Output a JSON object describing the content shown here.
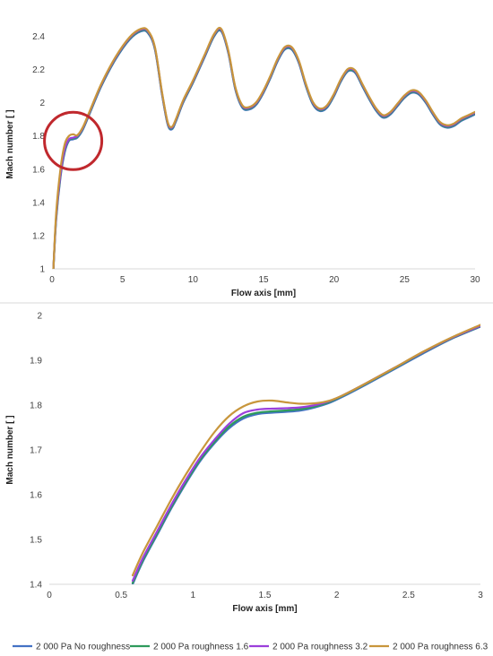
{
  "chart_data": [
    {
      "type": "line",
      "xlabel": "Flow axis [mm]",
      "ylabel": "Mach number [ ]",
      "xlim": [
        0,
        30
      ],
      "ylim": [
        1,
        2.5
      ],
      "x_ticks": [
        "0",
        "5",
        "10",
        "15",
        "20",
        "25",
        "30"
      ],
      "y_ticks": [
        "1",
        "1.2",
        "1.4",
        "1.6",
        "1.8",
        "2",
        "2.2",
        "2.4"
      ],
      "grid": false,
      "annotation": {
        "shape": "circle",
        "color": "#c0282d",
        "center_x": 1.5,
        "center_y": 1.77
      },
      "series": [
        {
          "name": "2 000 Pa No roughness",
          "color": "#4472c4",
          "x": [
            0.1,
            0.3,
            0.6,
            0.9,
            1.2,
            1.5,
            1.8,
            2.2,
            2.7,
            3.5,
            4.5,
            5.5,
            6.3,
            6.8,
            7.3,
            7.8,
            8.2,
            8.5,
            8.8,
            9.3,
            10,
            10.8,
            11.5,
            12,
            12.5,
            13,
            13.5,
            14,
            14.5,
            15,
            15.5,
            16,
            16.5,
            17,
            17.5,
            18,
            18.5,
            19,
            19.5,
            20,
            20.5,
            21,
            21.5,
            22,
            22.5,
            23,
            23.5,
            24,
            24.5,
            25,
            25.5,
            26,
            26.5,
            27,
            27.5,
            28,
            28.5,
            29,
            29.5,
            30
          ],
          "y": [
            1.0,
            1.3,
            1.55,
            1.7,
            1.77,
            1.78,
            1.79,
            1.84,
            1.94,
            2.1,
            2.26,
            2.38,
            2.43,
            2.42,
            2.32,
            2.05,
            1.87,
            1.84,
            1.89,
            2.0,
            2.12,
            2.27,
            2.4,
            2.43,
            2.3,
            2.08,
            1.97,
            1.96,
            1.99,
            2.06,
            2.15,
            2.25,
            2.32,
            2.32,
            2.24,
            2.1,
            1.99,
            1.95,
            1.97,
            2.04,
            2.13,
            2.19,
            2.18,
            2.1,
            2.02,
            1.95,
            1.91,
            1.93,
            1.98,
            2.03,
            2.06,
            2.05,
            2.0,
            1.93,
            1.87,
            1.85,
            1.86,
            1.89,
            1.91,
            1.93
          ]
        },
        {
          "name": "2 000 Pa roughness 1.6",
          "color": "#2e9a5c",
          "x": [
            0.1,
            0.3,
            0.6,
            0.9,
            1.2,
            1.5,
            1.8,
            2.2,
            2.7,
            3.5,
            4.5,
            5.5,
            6.3,
            6.8,
            7.3,
            7.8,
            8.2,
            8.5,
            8.8,
            9.3,
            10,
            10.8,
            11.5,
            12,
            12.5,
            13,
            13.5,
            14,
            14.5,
            15,
            15.5,
            16,
            16.5,
            17,
            17.5,
            18,
            18.5,
            19,
            19.5,
            20,
            20.5,
            21,
            21.5,
            22,
            22.5,
            23,
            23.5,
            24,
            24.5,
            25,
            25.5,
            26,
            26.5,
            27,
            27.5,
            28,
            28.5,
            29,
            29.5,
            30
          ],
          "y": [
            1.0,
            1.31,
            1.56,
            1.71,
            1.775,
            1.785,
            1.795,
            1.845,
            1.945,
            2.105,
            2.265,
            2.385,
            2.435,
            2.425,
            2.325,
            2.055,
            1.875,
            1.845,
            1.895,
            2.005,
            2.125,
            2.275,
            2.405,
            2.435,
            2.305,
            2.085,
            1.975,
            1.965,
            1.995,
            2.065,
            2.155,
            2.255,
            2.325,
            2.325,
            2.245,
            2.105,
            1.995,
            1.955,
            1.975,
            2.045,
            2.135,
            2.195,
            2.185,
            2.105,
            2.025,
            1.955,
            1.915,
            1.935,
            1.985,
            2.035,
            2.065,
            2.055,
            2.005,
            1.935,
            1.875,
            1.855,
            1.865,
            1.895,
            1.915,
            1.935
          ]
        },
        {
          "name": "2 000 Pa roughness 3.2",
          "color": "#9b3fdb",
          "x": [
            0.1,
            0.3,
            0.6,
            0.9,
            1.2,
            1.5,
            1.8,
            2.2,
            2.7,
            3.5,
            4.5,
            5.5,
            6.3,
            6.8,
            7.3,
            7.8,
            8.2,
            8.5,
            8.8,
            9.3,
            10,
            10.8,
            11.5,
            12,
            12.5,
            13,
            13.5,
            14,
            14.5,
            15,
            15.5,
            16,
            16.5,
            17,
            17.5,
            18,
            18.5,
            19,
            19.5,
            20,
            20.5,
            21,
            21.5,
            22,
            22.5,
            23,
            23.5,
            24,
            24.5,
            25,
            25.5,
            26,
            26.5,
            27,
            27.5,
            28,
            28.5,
            29,
            29.5,
            30
          ],
          "y": [
            1.0,
            1.32,
            1.57,
            1.72,
            1.78,
            1.79,
            1.8,
            1.85,
            1.95,
            2.11,
            2.27,
            2.39,
            2.44,
            2.43,
            2.33,
            2.06,
            1.88,
            1.85,
            1.9,
            2.01,
            2.13,
            2.28,
            2.41,
            2.44,
            2.31,
            2.09,
            1.98,
            1.97,
            2.0,
            2.07,
            2.16,
            2.26,
            2.33,
            2.33,
            2.25,
            2.11,
            2.0,
            1.96,
            1.98,
            2.05,
            2.14,
            2.2,
            2.19,
            2.11,
            2.03,
            1.96,
            1.92,
            1.94,
            1.99,
            2.04,
            2.07,
            2.06,
            2.01,
            1.94,
            1.88,
            1.86,
            1.87,
            1.9,
            1.92,
            1.94
          ]
        },
        {
          "name": "2 000 Pa roughness 6.3",
          "color": "#c8963c",
          "x": [
            0.1,
            0.3,
            0.6,
            0.9,
            1.2,
            1.5,
            1.8,
            2.2,
            2.7,
            3.5,
            4.5,
            5.5,
            6.3,
            6.8,
            7.3,
            7.8,
            8.2,
            8.5,
            8.8,
            9.3,
            10,
            10.8,
            11.5,
            12,
            12.5,
            13,
            13.5,
            14,
            14.5,
            15,
            15.5,
            16,
            16.5,
            17,
            17.5,
            18,
            18.5,
            19,
            19.5,
            20,
            20.5,
            21,
            21.5,
            22,
            22.5,
            23,
            23.5,
            24,
            24.5,
            25,
            25.5,
            26,
            26.5,
            27,
            27.5,
            28,
            28.5,
            29,
            29.5,
            30
          ],
          "y": [
            1.0,
            1.34,
            1.6,
            1.75,
            1.8,
            1.81,
            1.805,
            1.855,
            1.955,
            2.115,
            2.275,
            2.395,
            2.445,
            2.435,
            2.335,
            2.065,
            1.885,
            1.855,
            1.905,
            2.015,
            2.135,
            2.285,
            2.415,
            2.445,
            2.315,
            2.095,
            1.985,
            1.975,
            2.005,
            2.075,
            2.165,
            2.265,
            2.335,
            2.335,
            2.255,
            2.115,
            2.005,
            1.965,
            1.985,
            2.055,
            2.145,
            2.205,
            2.195,
            2.115,
            2.035,
            1.965,
            1.925,
            1.945,
            1.995,
            2.045,
            2.075,
            2.065,
            2.015,
            1.945,
            1.885,
            1.865,
            1.875,
            1.905,
            1.925,
            1.945
          ]
        }
      ]
    },
    {
      "type": "line",
      "xlabel": "Flow axis [mm]",
      "ylabel": "Mach number [ ]",
      "xlim": [
        0,
        3
      ],
      "ylim": [
        1.4,
        2
      ],
      "x_ticks": [
        "0",
        "0.5",
        "1",
        "1.5",
        "2",
        "2.5",
        "3"
      ],
      "y_ticks": [
        "1.4",
        "1.5",
        "1.6",
        "1.7",
        "1.8",
        "1.9",
        "2"
      ],
      "grid": false,
      "legend": "bottom",
      "series": [
        {
          "name": "2 000 Pa No roughness",
          "color": "#4472c4",
          "x": [
            0.58,
            0.65,
            0.75,
            0.85,
            0.95,
            1.05,
            1.15,
            1.25,
            1.35,
            1.45,
            1.55,
            1.65,
            1.75,
            1.85,
            1.95,
            2.05,
            2.2,
            2.4,
            2.6,
            2.8,
            3.0
          ],
          "y": [
            1.4,
            1.45,
            1.51,
            1.57,
            1.625,
            1.675,
            1.715,
            1.748,
            1.77,
            1.78,
            1.783,
            1.785,
            1.788,
            1.795,
            1.805,
            1.82,
            1.845,
            1.88,
            1.915,
            1.948,
            1.975
          ]
        },
        {
          "name": "2 000 Pa roughness 1.6",
          "color": "#2e9a5c",
          "x": [
            0.58,
            0.65,
            0.75,
            0.85,
            0.95,
            1.05,
            1.15,
            1.25,
            1.35,
            1.45,
            1.55,
            1.65,
            1.75,
            1.85,
            1.95,
            2.05,
            2.2,
            2.4,
            2.6,
            2.8,
            3.0
          ],
          "y": [
            1.403,
            1.453,
            1.513,
            1.573,
            1.628,
            1.678,
            1.718,
            1.752,
            1.774,
            1.783,
            1.786,
            1.788,
            1.791,
            1.797,
            1.807,
            1.822,
            1.847,
            1.882,
            1.917,
            1.949,
            1.976
          ]
        },
        {
          "name": "2 000 Pa roughness 3.2",
          "color": "#9b3fdb",
          "x": [
            0.58,
            0.65,
            0.75,
            0.85,
            0.95,
            1.05,
            1.15,
            1.25,
            1.35,
            1.45,
            1.55,
            1.65,
            1.75,
            1.85,
            1.95,
            2.05,
            2.2,
            2.4,
            2.6,
            2.8,
            3.0
          ],
          "y": [
            1.408,
            1.458,
            1.518,
            1.578,
            1.633,
            1.683,
            1.723,
            1.758,
            1.782,
            1.79,
            1.792,
            1.793,
            1.795,
            1.8,
            1.809,
            1.823,
            1.848,
            1.883,
            1.918,
            1.95,
            1.977
          ]
        },
        {
          "name": "2 000 Pa roughness 6.3",
          "color": "#c8963c",
          "x": [
            0.58,
            0.65,
            0.75,
            0.85,
            0.95,
            1.05,
            1.15,
            1.25,
            1.35,
            1.45,
            1.55,
            1.65,
            1.75,
            1.85,
            1.95,
            2.05,
            2.2,
            2.4,
            2.6,
            2.8,
            3.0
          ],
          "y": [
            1.42,
            1.47,
            1.53,
            1.59,
            1.645,
            1.695,
            1.74,
            1.775,
            1.797,
            1.808,
            1.81,
            1.806,
            1.803,
            1.804,
            1.81,
            1.823,
            1.848,
            1.883,
            1.919,
            1.951,
            1.979
          ]
        }
      ]
    }
  ]
}
